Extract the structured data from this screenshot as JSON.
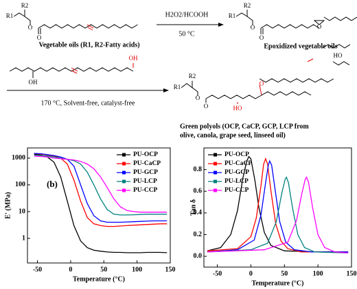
{
  "scheme": {
    "reagent": "H2O2/HCOOH",
    "condition1": "50 °C",
    "condition2": "170 °C, Solvent-free, catalyst-free",
    "label_oil": "Vegetable oils (R1, R2-Fatty acids)",
    "label_epoxide": "Epoxidized vegetable oils",
    "label_polyol": [
      "Green polyols (OCP, CaCP, GCP, LCP  from",
      "olive, canola, grape seed, linseed oil)"
    ],
    "atoms": [
      "R1",
      "R2",
      "O",
      "O",
      "R1",
      "R2",
      "O",
      "O",
      "O",
      "OH",
      "OH",
      "R1",
      "R2",
      "O",
      "O",
      "HO",
      "O",
      "HO"
    ]
  },
  "chart_data": [
    {
      "type": "line",
      "panel_label": "(b)",
      "x_label": "Temperature (°C)",
      "y_label": "E' (MPa)",
      "log_y": true,
      "xlim": [
        -65,
        150
      ],
      "ylim": [
        0.12,
        2400
      ],
      "xticks": [
        -50,
        0,
        50,
        100,
        150
      ],
      "yticks": [
        1,
        10,
        100,
        1000
      ],
      "legend": "upper right",
      "x": [
        -55,
        -45,
        -35,
        -25,
        -15,
        -5,
        5,
        15,
        25,
        35,
        45,
        55,
        65,
        75,
        85,
        95,
        105,
        115,
        125,
        135,
        145
      ],
      "series": [
        {
          "name": "PU-OCP",
          "color": "#000000",
          "values": [
            1400,
            1300,
            1100,
            700,
            200,
            25,
            3,
            0.8,
            0.45,
            0.36,
            0.33,
            0.31,
            0.3,
            0.3,
            0.29,
            0.29,
            0.29,
            0.3,
            0.3,
            0.3,
            0.29
          ]
        },
        {
          "name": "PU-CaCP",
          "color": "#ff0000",
          "values": [
            1500,
            1400,
            1300,
            1200,
            1000,
            600,
            150,
            25,
            6,
            3.5,
            3,
            2.8,
            2.8,
            2.9,
            3,
            3.1,
            3.2,
            3.3,
            3.4,
            3.5,
            3.5
          ]
        },
        {
          "name": "PU-GCP",
          "color": "#0000ff",
          "values": [
            1500,
            1450,
            1350,
            1250,
            1100,
            900,
            500,
            100,
            20,
            7,
            4.5,
            4,
            4,
            4,
            4.1,
            4.2,
            4.3,
            4.4,
            4.5,
            4.5,
            4.5
          ]
        },
        {
          "name": "PU-LCP",
          "color": "#008080",
          "values": [
            1300,
            1250,
            1200,
            1100,
            1000,
            900,
            800,
            600,
            300,
            100,
            30,
            12,
            8,
            7.5,
            7.5,
            7.6,
            7.8,
            8,
            8,
            8,
            8
          ]
        },
        {
          "name": "PU-CCP",
          "color": "#ff00ff",
          "values": [
            1200,
            1150,
            1100,
            1000,
            950,
            900,
            850,
            750,
            600,
            400,
            200,
            80,
            30,
            15,
            11,
            10,
            9.5,
            9.5,
            9.5,
            9.5,
            9.5
          ]
        }
      ]
    },
    {
      "type": "line",
      "x_label": "Temperature (°C)",
      "y_label": "Tan δ",
      "log_y": false,
      "xlim": [
        -70,
        150
      ],
      "ylim": [
        -0.1,
        1.0
      ],
      "xticks": [
        -50,
        0,
        50,
        100,
        150
      ],
      "yticks": [
        {
          "value": 0,
          "label": "0.0"
        },
        0.2,
        0.4,
        0.6,
        0.8
      ],
      "legend": "upper left",
      "series": [
        {
          "name": "PU-OCP",
          "color": "#000000",
          "x": [
            -65,
            -45,
            -30,
            -20,
            -12,
            -6,
            -3,
            0,
            6,
            12,
            20,
            30,
            50,
            100,
            145
          ],
          "values": [
            0.05,
            0.08,
            0.2,
            0.42,
            0.72,
            0.88,
            0.92,
            0.9,
            0.7,
            0.45,
            0.22,
            0.1,
            0.05,
            0.04,
            0.04
          ]
        },
        {
          "name": "PU-CaCP",
          "color": "#ff0000",
          "x": [
            -65,
            -20,
            0,
            8,
            15,
            19,
            22,
            25,
            30,
            37,
            45,
            55,
            75,
            145
          ],
          "values": [
            0.05,
            0.07,
            0.18,
            0.35,
            0.65,
            0.85,
            0.9,
            0.85,
            0.6,
            0.3,
            0.14,
            0.07,
            0.04,
            0.04
          ]
        },
        {
          "name": "PU-GCP",
          "color": "#0000ff",
          "x": [
            -65,
            -20,
            5,
            15,
            22,
            26,
            28,
            31,
            36,
            43,
            52,
            65,
            90,
            145
          ],
          "values": [
            0.04,
            0.06,
            0.15,
            0.38,
            0.68,
            0.84,
            0.88,
            0.84,
            0.62,
            0.32,
            0.13,
            0.06,
            0.04,
            0.04
          ]
        },
        {
          "name": "PU-LCP",
          "color": "#008080",
          "x": [
            -65,
            0,
            25,
            38,
            46,
            51,
            53,
            56,
            62,
            70,
            80,
            95,
            145
          ],
          "values": [
            0.04,
            0.06,
            0.12,
            0.32,
            0.58,
            0.71,
            0.73,
            0.68,
            0.45,
            0.2,
            0.08,
            0.04,
            0.03
          ]
        },
        {
          "name": "PU-CCP",
          "color": "#ff00ff",
          "x": [
            -65,
            20,
            55,
            68,
            76,
            81,
            83,
            86,
            92,
            100,
            110,
            125,
            145
          ],
          "values": [
            0.04,
            0.06,
            0.13,
            0.33,
            0.58,
            0.71,
            0.73,
            0.68,
            0.45,
            0.2,
            0.08,
            0.04,
            0.03
          ]
        }
      ]
    }
  ]
}
